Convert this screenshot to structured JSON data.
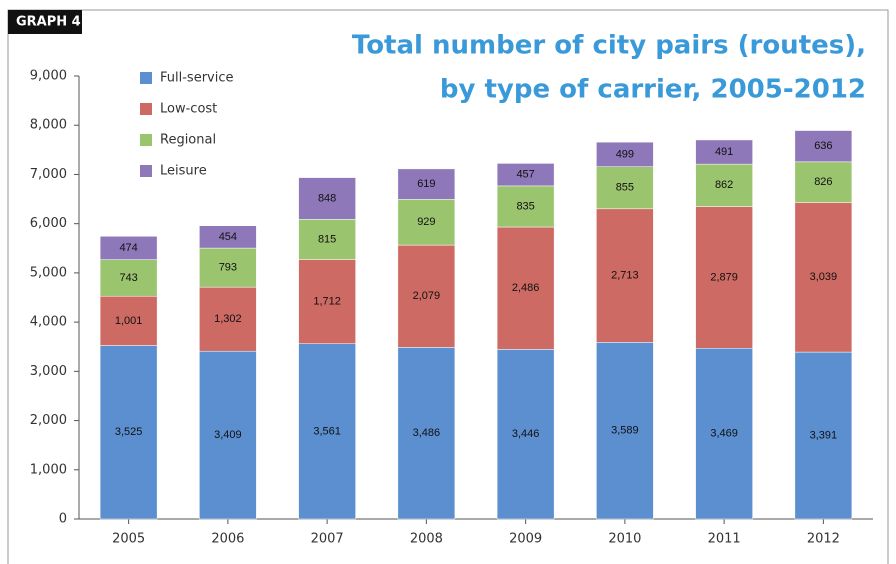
{
  "chart_data": {
    "type": "stacked_bar",
    "label": "GRAPH 4",
    "title": [
      "Total number of city pairs (routes),",
      "by type of carrier, 2005-2012"
    ],
    "categories": [
      "2005",
      "2006",
      "2007",
      "2008",
      "2009",
      "2010",
      "2011",
      "2012"
    ],
    "series": [
      {
        "name": "Full-service",
        "color": "#5b8fcf",
        "values": [
          3525,
          3409,
          3561,
          3486,
          3446,
          3589,
          3469,
          3391
        ],
        "value_labels": [
          "3,525",
          "3,409",
          "3,561",
          "3,486",
          "3,446",
          "3,589",
          "3,469",
          "3,391"
        ]
      },
      {
        "name": "Low-cost",
        "color": "#cd6a63",
        "values": [
          1001,
          1302,
          1712,
          2079,
          2486,
          2713,
          2879,
          3039
        ],
        "value_labels": [
          "1,001",
          "1,302",
          "1,712",
          "2,079",
          "2,486",
          "2,713",
          "2,879",
          "3,039"
        ]
      },
      {
        "name": "Regional",
        "color": "#9bc46f",
        "values": [
          743,
          793,
          815,
          929,
          835,
          855,
          862,
          826
        ]
      },
      {
        "name": "Leisure",
        "color": "#8e78b9",
        "values": [
          474,
          454,
          848,
          619,
          457,
          499,
          491,
          636
        ]
      }
    ],
    "ylim": [
      0,
      9000
    ],
    "yticks": [
      0,
      {
        "value": 1000,
        "label": "1,000"
      },
      {
        "value": 2000,
        "label": "2,000"
      },
      {
        "value": 3000,
        "label": "3,000"
      },
      {
        "value": 4000,
        "label": "4,000"
      },
      {
        "value": 5000,
        "label": "5,000"
      },
      {
        "value": 6000,
        "label": "6,000"
      },
      {
        "value": 7000,
        "label": "7,000"
      },
      {
        "value": 8000,
        "label": "8,000"
      },
      {
        "value": 9000,
        "label": "9,000"
      }
    ],
    "legend": "top-left"
  }
}
